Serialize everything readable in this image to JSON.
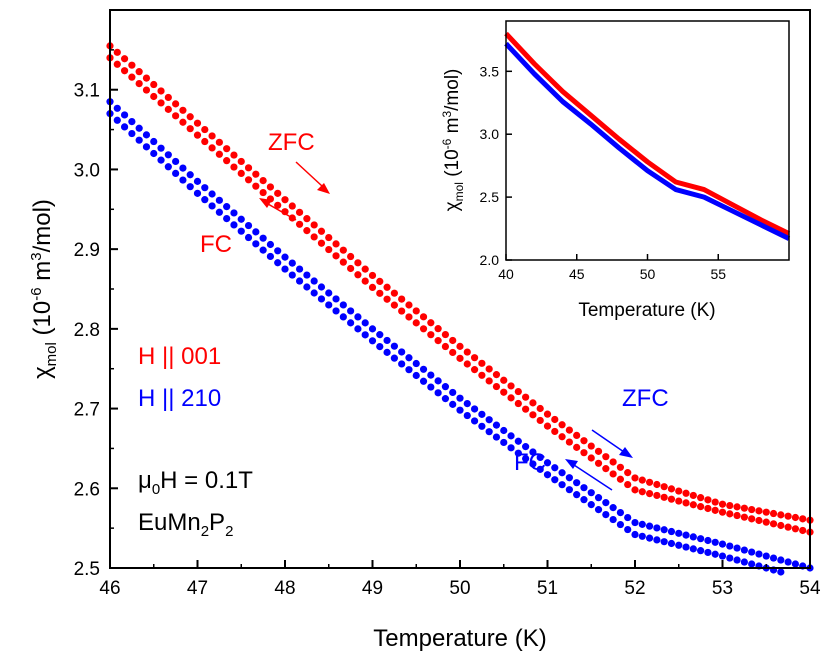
{
  "colors": {
    "zfc_fc_001": "#ff0000",
    "zfc_fc_210": "#0000ff",
    "axes": "#000000"
  },
  "chart_data": [
    {
      "type": "scatter",
      "xlabel": "Temperature (K)",
      "ylabel_main": "χ",
      "ylabel_sub": "mol",
      "ylabel_rest": " (10",
      "ylabel_sup": "-6",
      "ylabel_tail": " m",
      "ylabel_sup2": "3",
      "ylabel_end": "/mol)",
      "xlim": [
        46,
        54
      ],
      "ylim": [
        2.5,
        3.2
      ],
      "xticks": [
        "46",
        "47",
        "48",
        "49",
        "50",
        "51",
        "52",
        "53",
        "54"
      ],
      "yticks": [
        "2.5",
        "2.6",
        "2.7",
        "2.8",
        "2.9",
        "3.0",
        "3.1"
      ],
      "grid": false,
      "series": [
        {
          "name": "H || 001 ZFC",
          "color": "#ff0000",
          "x": [
            46.0,
            47.0,
            48.0,
            49.0,
            50.0,
            51.0,
            52.0,
            53.0,
            54.0
          ],
          "y": [
            3.155,
            3.058,
            2.962,
            2.867,
            2.778,
            2.693,
            2.613,
            2.58,
            2.56
          ]
        },
        {
          "name": "H || 001 FC",
          "color": "#ff0000",
          "x": [
            46.0,
            47.0,
            48.0,
            49.0,
            50.0,
            51.0,
            52.0,
            53.0,
            54.0
          ],
          "y": [
            3.14,
            3.043,
            2.947,
            2.852,
            2.763,
            2.678,
            2.598,
            2.57,
            2.545
          ]
        },
        {
          "name": "H || 210 ZFC",
          "color": "#0000ff",
          "x": [
            46.0,
            47.0,
            48.0,
            49.0,
            50.0,
            51.0,
            52.0,
            53.0,
            54.0
          ],
          "y": [
            3.085,
            2.985,
            2.89,
            2.8,
            2.713,
            2.632,
            2.557,
            2.53,
            2.5
          ]
        },
        {
          "name": "H || 210 FC",
          "color": "#0000ff",
          "x": [
            46.0,
            47.0,
            48.0,
            49.0,
            50.0,
            51.0,
            52.0,
            53.0,
            54.0
          ],
          "y": [
            3.07,
            2.97,
            2.875,
            2.785,
            2.698,
            2.617,
            2.542,
            2.515,
            2.485
          ]
        }
      ],
      "legend": {
        "h001": "H || 001",
        "h210": "H || 210"
      },
      "annotations": {
        "zfc_red": "ZFC",
        "fc_red": "FC",
        "zfc_blue": "ZFC",
        "fc_blue": "FC",
        "field_pre": "μ",
        "field_sub": "0",
        "field_post": "H = 0.1T",
        "comp_a": "EuMn",
        "comp_s1": "2",
        "comp_b": "P",
        "comp_s2": "2"
      }
    },
    {
      "type": "line",
      "xlabel": "Temperature (K)",
      "xlim": [
        40,
        60
      ],
      "ylim": [
        2.0,
        3.9
      ],
      "xticks": [
        "40",
        "45",
        "50",
        "55"
      ],
      "yticks": [
        "2.0",
        "2.5",
        "3.0",
        "3.5"
      ],
      "series": [
        {
          "name": "H || 001",
          "color": "#ff0000",
          "x": [
            40,
            42,
            44,
            46,
            48,
            50,
            52,
            54,
            56,
            58,
            60
          ],
          "y": [
            3.8,
            3.56,
            3.34,
            3.15,
            2.96,
            2.78,
            2.62,
            2.56,
            2.44,
            2.32,
            2.21
          ]
        },
        {
          "name": "H || 210",
          "color": "#0000ff",
          "x": [
            40,
            42,
            44,
            46,
            48,
            50,
            52,
            54,
            56,
            58,
            60
          ],
          "y": [
            3.72,
            3.48,
            3.26,
            3.08,
            2.89,
            2.71,
            2.56,
            2.5,
            2.39,
            2.28,
            2.17
          ]
        }
      ]
    }
  ]
}
